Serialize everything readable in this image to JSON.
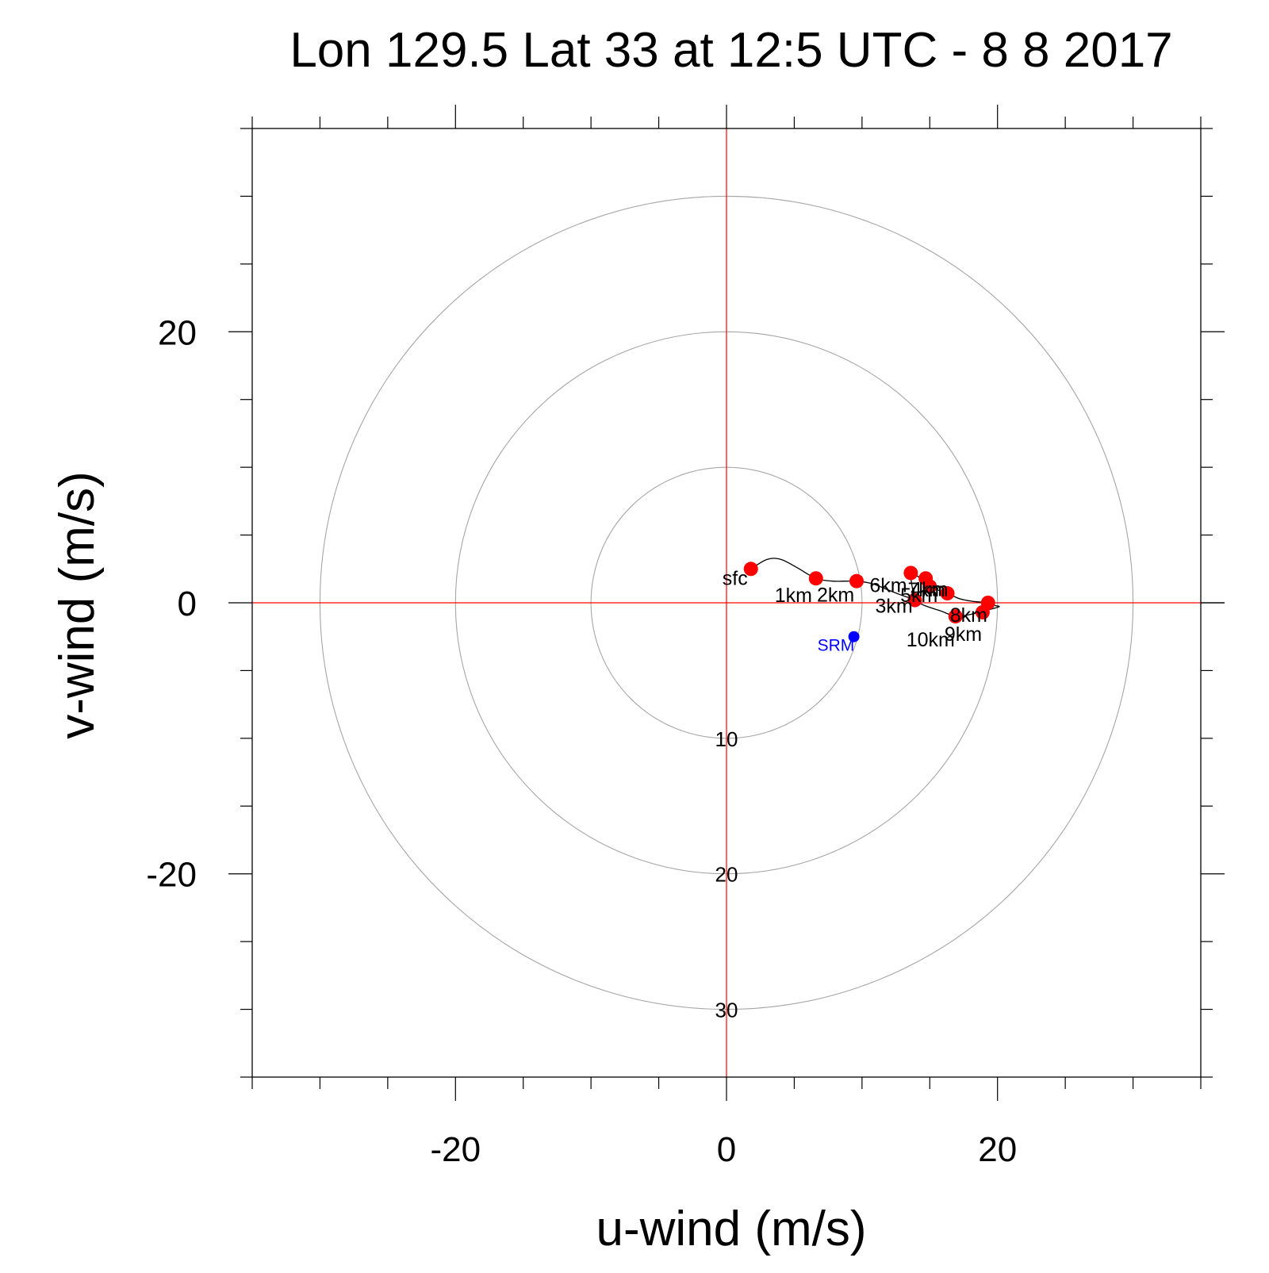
{
  "chart_data": {
    "type": "scatter",
    "title": "Lon 129.5 Lat 33 at 12:5 UTC - 8 8 2017",
    "xlabel": "u-wind (m/s)",
    "ylabel": "v-wind (m/s)",
    "xlim": [
      -35,
      35
    ],
    "ylim": [
      -35,
      35
    ],
    "x_ticks": [
      -20,
      0,
      20
    ],
    "y_ticks": [
      20,
      0,
      -20
    ],
    "x_tick_labels": [
      "-20",
      "0",
      "20"
    ],
    "y_tick_labels": [
      "20",
      "0",
      "-20"
    ],
    "minor_tick_step": 5,
    "range_rings": [
      {
        "radius": 10,
        "label": "10"
      },
      {
        "radius": 20,
        "label": "20"
      },
      {
        "radius": 30,
        "label": "30"
      }
    ],
    "hodograph_trace": [
      [
        1.8,
        2.5
      ],
      [
        3.0,
        3.2
      ],
      [
        4.0,
        3.2
      ],
      [
        5.2,
        2.6
      ],
      [
        6.6,
        1.8
      ],
      [
        7.8,
        1.6
      ],
      [
        8.8,
        1.6
      ],
      [
        9.6,
        1.6
      ],
      [
        10.8,
        1.4
      ],
      [
        11.8,
        1.0
      ],
      [
        12.8,
        0.6
      ],
      [
        13.4,
        0.4
      ],
      [
        13.9,
        0.2
      ],
      [
        13.8,
        0.6
      ],
      [
        13.6,
        2.2
      ],
      [
        14.2,
        1.9
      ],
      [
        14.7,
        1.8
      ],
      [
        15.0,
        1.2
      ],
      [
        16.3,
        0.7
      ],
      [
        17.2,
        0.3
      ],
      [
        18.2,
        0.1
      ],
      [
        19.3,
        0.0
      ],
      [
        19.8,
        -0.2
      ],
      [
        20.1,
        -0.3
      ],
      [
        19.0,
        -0.6
      ],
      [
        17.8,
        -0.9
      ],
      [
        16.9,
        -1.0
      ],
      [
        15.8,
        -0.6
      ],
      [
        14.6,
        -0.2
      ],
      [
        13.8,
        0.2
      ]
    ],
    "levels": [
      {
        "label": "sfc",
        "u": 1.8,
        "v": 2.5
      },
      {
        "label": "1km",
        "u": 6.6,
        "v": 1.8
      },
      {
        "label": "2km",
        "u": 9.6,
        "v": 1.6
      },
      {
        "label": "3km",
        "u": 13.9,
        "v": 0.2
      },
      {
        "label": "4km",
        "u": 15.0,
        "v": 1.2
      },
      {
        "label": "5km",
        "u": 14.7,
        "v": 1.8
      },
      {
        "label": "6km",
        "u": 13.6,
        "v": 2.2
      },
      {
        "label": "7km",
        "u": 16.3,
        "v": 0.7
      },
      {
        "label": "8km",
        "u": 19.3,
        "v": 0.0
      },
      {
        "label": "9km",
        "u": 18.9,
        "v": -0.7
      },
      {
        "label": "10km",
        "u": 16.9,
        "v": -1.0
      }
    ],
    "storm_relative_motion": {
      "label": "SRM",
      "u": 9.4,
      "v": -2.5
    },
    "colors": {
      "level_marker": "#ff0000",
      "srm_marker": "#0000ff",
      "srm_text": "#0000ff",
      "crosshair": "#ff0000",
      "rings": "#a6a6a6",
      "trace": "#000000",
      "frame": "#000000"
    }
  }
}
